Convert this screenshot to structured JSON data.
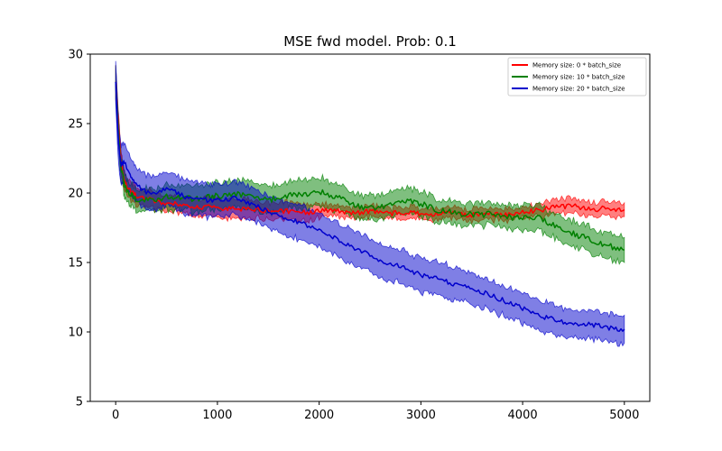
{
  "chart_data": {
    "type": "line",
    "title": "MSE fwd model. Prob: 0.1",
    "xlabel": "",
    "ylabel": "",
    "xlim": [
      -250,
      5250
    ],
    "ylim": [
      5,
      30
    ],
    "x_ticks": [
      0,
      1000,
      2000,
      3000,
      4000,
      5000
    ],
    "y_ticks": [
      5,
      10,
      15,
      20,
      25,
      30
    ],
    "x_tick_labels": [
      "0",
      "1000",
      "2000",
      "3000",
      "4000",
      "5000"
    ],
    "y_tick_labels": [
      "5",
      "10",
      "15",
      "20",
      "25",
      "30"
    ],
    "grid": false,
    "legend_position": "top-right",
    "x": [
      0,
      25,
      50,
      75,
      100,
      150,
      200,
      300,
      400,
      500,
      600,
      700,
      800,
      900,
      1000,
      1100,
      1200,
      1300,
      1400,
      1500,
      1600,
      1700,
      1800,
      1900,
      2000,
      2100,
      2200,
      2300,
      2400,
      2500,
      2600,
      2700,
      2800,
      2900,
      3000,
      3100,
      3200,
      3300,
      3400,
      3500,
      3600,
      3700,
      3800,
      3900,
      4000,
      4100,
      4200,
      4300,
      4400,
      4500,
      4600,
      4700,
      4800,
      4900,
      5000
    ],
    "series": [
      {
        "name": "Memory size: 0 * batch_size",
        "color": "#ff0000",
        "end": 5000,
        "values": [
          28,
          25,
          22.5,
          21.2,
          20.6,
          20.1,
          19.8,
          19.6,
          19.4,
          19.3,
          19.2,
          19.1,
          19.0,
          19.0,
          18.9,
          18.9,
          18.8,
          18.8,
          18.8,
          18.7,
          18.7,
          18.7,
          18.6,
          18.6,
          18.7,
          18.8,
          18.7,
          18.6,
          18.6,
          18.7,
          18.6,
          18.5,
          18.6,
          18.6,
          18.5,
          18.4,
          18.5,
          18.6,
          18.5,
          18.4,
          18.5,
          18.5,
          18.4,
          18.5,
          18.6,
          18.7,
          18.8,
          19.0,
          19.0,
          19.1,
          18.9,
          18.8,
          18.9,
          18.8,
          18.8
        ],
        "band": [
          1.2,
          1.0,
          0.8,
          0.7,
          0.6,
          0.6,
          0.6,
          0.6,
          0.6,
          0.6,
          0.6,
          0.6,
          0.6,
          0.6,
          0.7,
          0.7,
          0.7,
          0.7,
          0.6,
          0.6,
          0.6,
          0.6,
          0.6,
          0.6,
          0.5,
          0.4,
          0.4,
          0.4,
          0.4,
          0.4,
          0.4,
          0.4,
          0.4,
          0.4,
          0.4,
          0.4,
          0.4,
          0.4,
          0.4,
          0.4,
          0.4,
          0.4,
          0.4,
          0.4,
          0.4,
          0.4,
          0.5,
          0.5,
          0.5,
          0.5,
          0.5,
          0.5,
          0.5,
          0.5,
          0.5
        ]
      },
      {
        "name": "Memory size: 10 * batch_size",
        "color": "#008000",
        "end": 5000,
        "values": [
          28,
          24.5,
          22.0,
          21.0,
          20.3,
          19.9,
          19.6,
          19.5,
          19.6,
          19.7,
          19.7,
          19.6,
          19.6,
          19.7,
          19.8,
          19.8,
          19.9,
          19.8,
          19.6,
          19.5,
          19.7,
          19.8,
          19.9,
          20.0,
          20.1,
          19.9,
          19.6,
          19.3,
          19.0,
          18.9,
          19.0,
          19.2,
          19.3,
          19.4,
          19.2,
          19.0,
          18.7,
          18.6,
          18.4,
          18.5,
          18.4,
          18.5,
          18.4,
          18.2,
          18.2,
          18.3,
          18.1,
          17.7,
          17.3,
          17.1,
          16.8,
          16.6,
          16.3,
          16.1,
          15.9
        ],
        "band": [
          1.2,
          1.0,
          0.9,
          0.8,
          0.8,
          0.8,
          0.8,
          0.8,
          0.8,
          0.9,
          0.9,
          0.9,
          0.9,
          0.9,
          1.0,
          1.0,
          1.0,
          1.0,
          1.0,
          1.0,
          1.0,
          1.0,
          1.0,
          1.0,
          1.0,
          1.0,
          0.9,
          0.9,
          0.9,
          0.9,
          0.9,
          0.9,
          0.9,
          0.9,
          0.9,
          0.9,
          0.8,
          0.8,
          0.8,
          0.8,
          0.8,
          0.8,
          0.8,
          0.8,
          0.9,
          0.9,
          0.9,
          0.9,
          0.9,
          0.9,
          0.9,
          0.9,
          0.9,
          0.9,
          0.9
        ]
      },
      {
        "name": "Memory size: 20 * batch_size",
        "color": "#0000cc",
        "end": 5000,
        "values": [
          28,
          24.0,
          22.0,
          22.2,
          22.0,
          21.2,
          20.6,
          20.1,
          20.0,
          20.3,
          20.0,
          19.7,
          19.6,
          19.5,
          19.5,
          19.6,
          19.6,
          19.3,
          19.0,
          18.7,
          18.4,
          18.1,
          17.9,
          17.6,
          17.3,
          17.0,
          16.6,
          16.2,
          15.9,
          15.5,
          15.2,
          14.9,
          14.7,
          14.4,
          14.1,
          14.0,
          13.8,
          13.5,
          13.3,
          13.1,
          12.9,
          12.6,
          12.3,
          12.0,
          11.7,
          11.4,
          11.1,
          10.9,
          10.7,
          10.6,
          10.6,
          10.5,
          10.4,
          10.2,
          10.2
        ],
        "band": [
          1.5,
          1.5,
          1.4,
          1.4,
          1.4,
          1.3,
          1.2,
          1.2,
          1.2,
          1.2,
          1.2,
          1.2,
          1.2,
          1.2,
          1.2,
          1.2,
          1.2,
          1.2,
          1.2,
          1.2,
          1.2,
          1.2,
          1.2,
          1.2,
          1.2,
          1.2,
          1.2,
          1.2,
          1.2,
          1.2,
          1.2,
          1.2,
          1.2,
          1.2,
          1.2,
          1.2,
          1.2,
          1.2,
          1.1,
          1.1,
          1.1,
          1.1,
          1.1,
          1.1,
          1.1,
          1.1,
          1.1,
          1.1,
          1.0,
          1.0,
          1.0,
          1.0,
          1.0,
          1.0,
          1.0
        ]
      }
    ]
  }
}
